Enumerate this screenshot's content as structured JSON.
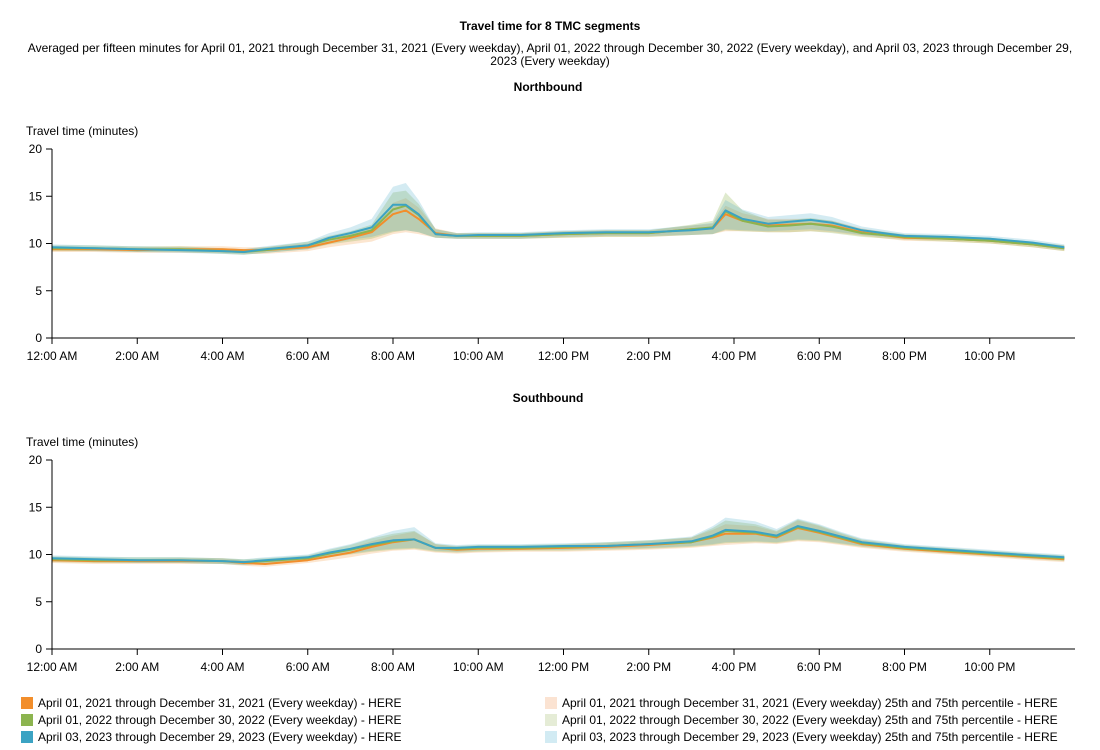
{
  "title": "Travel time for 8 TMC segments",
  "subtitle": "Averaged per fifteen minutes for April 01, 2021 through December 31, 2021 (Every weekday), April 01, 2022 through December 30, 2022 (Every weekday), and April 03, 2023 through December 29, 2023 (Every weekday)",
  "legend": {
    "items": [
      {
        "label": "April 01, 2021 through December 31, 2021 (Every weekday) - HERE",
        "color": "#f28e2b"
      },
      {
        "label": "April 01, 2022 through December 30, 2022 (Every weekday) - HERE",
        "color": "#8cb44f"
      },
      {
        "label": "April 03, 2023 through December 29, 2023 (Every weekday) - HERE",
        "color": "#3ba3c3"
      },
      {
        "label": "April 01, 2021 through December 31, 2021 (Every weekday) 25th and 75th percentile - HERE",
        "color": "#fbe3d2"
      },
      {
        "label": "April 01, 2022 through December 30, 2022 (Every weekday) 25th and 75th percentile - HERE",
        "color": "#e5ecd6"
      },
      {
        "label": "April 03, 2023 through December 29, 2023 (Every weekday) 25th and 75th percentile - HERE",
        "color": "#d2ebf3"
      }
    ]
  },
  "chart_data": [
    {
      "type": "line",
      "title": "Northbound",
      "ylabel": "Travel time (minutes)",
      "ylim": [
        0,
        20
      ],
      "yticks": [
        0,
        5,
        10,
        15,
        20
      ],
      "xlim": [
        0,
        24
      ],
      "xticks": [
        0,
        2,
        4,
        6,
        8,
        10,
        12,
        14,
        16,
        18,
        20,
        22
      ],
      "xtick_labels": [
        "12:00 AM",
        "2:00 AM",
        "4:00 AM",
        "6:00 AM",
        "8:00 AM",
        "10:00 AM",
        "12:00 PM",
        "2:00 PM",
        "4:00 PM",
        "6:00 PM",
        "8:00 PM",
        "10:00 PM"
      ],
      "x": [
        0,
        1,
        2,
        3,
        4,
        4.5,
        5,
        6,
        6.5,
        7,
        7.5,
        8,
        8.3,
        8.6,
        9,
        9.5,
        10,
        11,
        12,
        13,
        14,
        15,
        15.5,
        15.8,
        16.2,
        16.8,
        17.3,
        17.8,
        18.3,
        19,
        20,
        21,
        22,
        23,
        23.75
      ],
      "series": [
        {
          "name": "April 01, 2021 through December 31, 2021 (Every weekday) - HERE",
          "color": "#f28e2b",
          "values": [
            9.4,
            9.4,
            9.3,
            9.4,
            9.4,
            9.3,
            9.3,
            9.6,
            10.1,
            10.6,
            11.2,
            13.1,
            13.5,
            12.6,
            11.1,
            10.8,
            10.8,
            10.8,
            11.0,
            11.1,
            11.1,
            11.5,
            11.6,
            13.1,
            12.4,
            11.9,
            12.0,
            12.1,
            11.9,
            11.2,
            10.6,
            10.5,
            10.3,
            9.9,
            9.5
          ],
          "p25": [
            9.1,
            9.1,
            9.0,
            9.0,
            9.0,
            8.9,
            8.9,
            9.2,
            9.6,
            9.9,
            10.2,
            11.0,
            11.2,
            11.0,
            10.6,
            10.5,
            10.5,
            10.5,
            10.6,
            10.7,
            10.7,
            10.9,
            11.0,
            11.3,
            11.3,
            11.2,
            11.2,
            11.3,
            11.2,
            10.8,
            10.3,
            10.2,
            10.0,
            9.6,
            9.2
          ],
          "p75": [
            9.6,
            9.6,
            9.6,
            9.7,
            9.7,
            9.6,
            9.6,
            10.0,
            10.5,
            11.1,
            11.8,
            14.3,
            14.8,
            13.8,
            11.6,
            11.1,
            11.1,
            11.1,
            11.3,
            11.4,
            11.4,
            11.9,
            12.1,
            14.0,
            13.2,
            12.6,
            12.6,
            12.6,
            12.4,
            11.6,
            10.9,
            10.8,
            10.6,
            10.1,
            9.8
          ]
        },
        {
          "name": "April 01, 2022 through December 30, 2022 (Every weekday) - HERE",
          "color": "#8cb44f",
          "values": [
            9.5,
            9.5,
            9.4,
            9.4,
            9.2,
            9.1,
            9.3,
            9.8,
            10.4,
            10.8,
            11.4,
            13.6,
            14.0,
            13.0,
            11.0,
            10.8,
            10.8,
            10.8,
            11.0,
            11.1,
            11.1,
            11.5,
            11.7,
            13.4,
            12.4,
            11.8,
            11.9,
            12.1,
            11.8,
            11.1,
            10.7,
            10.5,
            10.3,
            9.9,
            9.5
          ],
          "p25": [
            9.2,
            9.2,
            9.1,
            9.1,
            8.9,
            8.8,
            9.0,
            9.4,
            9.9,
            10.2,
            10.5,
            11.2,
            11.4,
            11.2,
            10.6,
            10.5,
            10.5,
            10.5,
            10.6,
            10.7,
            10.7,
            10.9,
            11.0,
            11.4,
            11.3,
            11.2,
            11.2,
            11.3,
            11.1,
            10.7,
            10.4,
            10.2,
            10.0,
            9.6,
            9.2
          ],
          "p75": [
            9.8,
            9.8,
            9.7,
            9.7,
            9.5,
            9.4,
            9.6,
            10.2,
            10.8,
            11.3,
            12.0,
            15.4,
            15.6,
            14.2,
            11.5,
            11.1,
            11.1,
            11.1,
            11.3,
            11.4,
            11.4,
            12.0,
            12.4,
            15.4,
            13.5,
            12.5,
            12.5,
            12.7,
            12.4,
            11.5,
            11.0,
            10.8,
            10.6,
            10.2,
            9.8
          ]
        },
        {
          "name": "April 03, 2023 through December 29, 2023 (Every weekday) - HERE",
          "color": "#3ba3c3",
          "values": [
            9.6,
            9.5,
            9.4,
            9.3,
            9.2,
            9.1,
            9.4,
            9.8,
            10.6,
            11.1,
            11.7,
            14.1,
            14.1,
            13.1,
            11.0,
            10.8,
            10.9,
            10.9,
            11.1,
            11.2,
            11.2,
            11.4,
            11.6,
            13.5,
            12.6,
            12.1,
            12.3,
            12.5,
            12.2,
            11.4,
            10.8,
            10.7,
            10.5,
            10.1,
            9.6
          ],
          "p25": [
            9.3,
            9.2,
            9.1,
            9.0,
            8.9,
            8.8,
            9.0,
            9.4,
            10.0,
            10.4,
            10.7,
            11.3,
            11.4,
            11.2,
            10.6,
            10.5,
            10.5,
            10.5,
            10.7,
            10.8,
            10.8,
            10.9,
            11.0,
            11.5,
            11.4,
            11.3,
            11.4,
            11.5,
            11.3,
            10.9,
            10.5,
            10.4,
            10.2,
            9.8,
            9.3
          ],
          "p75": [
            9.9,
            9.8,
            9.7,
            9.6,
            9.5,
            9.4,
            9.7,
            10.2,
            11.1,
            11.7,
            12.6,
            16.0,
            16.4,
            14.6,
            11.5,
            11.1,
            11.2,
            11.2,
            11.4,
            11.5,
            11.5,
            11.9,
            12.2,
            14.6,
            13.6,
            12.8,
            13.0,
            13.2,
            12.8,
            11.8,
            11.1,
            11.0,
            10.8,
            10.4,
            9.9
          ]
        }
      ]
    },
    {
      "type": "line",
      "title": "Southbound",
      "ylabel": "Travel time (minutes)",
      "ylim": [
        0,
        20
      ],
      "yticks": [
        0,
        5,
        10,
        15,
        20
      ],
      "xlim": [
        0,
        24
      ],
      "xticks": [
        0,
        2,
        4,
        6,
        8,
        10,
        12,
        14,
        16,
        18,
        20,
        22
      ],
      "xtick_labels": [
        "12:00 AM",
        "2:00 AM",
        "4:00 AM",
        "6:00 AM",
        "8:00 AM",
        "10:00 AM",
        "12:00 PM",
        "2:00 PM",
        "4:00 PM",
        "6:00 PM",
        "8:00 PM",
        "10:00 PM"
      ],
      "x": [
        0,
        1,
        2,
        3,
        4,
        4.5,
        5,
        6,
        6.5,
        7,
        7.5,
        8,
        8.5,
        9,
        9.5,
        10,
        11,
        12,
        13,
        14,
        15,
        15.5,
        15.8,
        16.5,
        17,
        17.5,
        18,
        18.5,
        19,
        20,
        21,
        22,
        23,
        23.75
      ],
      "series": [
        {
          "name": "April 01, 2021 through December 31, 2021 (Every weekday) - HERE",
          "color": "#f28e2b",
          "values": [
            9.4,
            9.3,
            9.3,
            9.3,
            9.3,
            9.1,
            9.0,
            9.4,
            9.8,
            10.2,
            10.8,
            11.3,
            11.6,
            10.7,
            10.5,
            10.6,
            10.6,
            10.7,
            10.8,
            11.0,
            11.3,
            11.8,
            12.2,
            12.2,
            11.8,
            12.8,
            12.3,
            11.7,
            11.1,
            10.6,
            10.3,
            10.0,
            9.7,
            9.5
          ],
          "p25": [
            9.1,
            9.0,
            9.0,
            9.0,
            9.0,
            8.8,
            8.7,
            9.1,
            9.4,
            9.7,
            10.1,
            10.4,
            10.5,
            10.2,
            10.1,
            10.2,
            10.3,
            10.3,
            10.4,
            10.5,
            10.7,
            10.9,
            11.0,
            11.2,
            11.1,
            11.4,
            11.3,
            11.0,
            10.7,
            10.3,
            10.0,
            9.7,
            9.4,
            9.2
          ],
          "p75": [
            9.6,
            9.6,
            9.5,
            9.6,
            9.6,
            9.4,
            9.3,
            9.7,
            10.2,
            10.7,
            11.4,
            12.0,
            12.4,
            11.1,
            10.8,
            10.9,
            10.9,
            11.0,
            11.2,
            11.4,
            11.8,
            12.6,
            13.2,
            13.0,
            12.4,
            13.6,
            13.0,
            12.2,
            11.5,
            10.9,
            10.6,
            10.3,
            10.0,
            9.8
          ]
        },
        {
          "name": "April 01, 2022 through December 30, 2022 (Every weekday) - HERE",
          "color": "#8cb44f",
          "values": [
            9.5,
            9.4,
            9.4,
            9.4,
            9.3,
            9.2,
            9.3,
            9.6,
            10.1,
            10.5,
            11.0,
            11.4,
            11.6,
            10.7,
            10.6,
            10.7,
            10.7,
            10.8,
            10.9,
            11.1,
            11.3,
            11.9,
            12.5,
            12.3,
            11.9,
            12.9,
            12.4,
            11.8,
            11.2,
            10.7,
            10.4,
            10.1,
            9.8,
            9.6
          ],
          "p25": [
            9.2,
            9.1,
            9.1,
            9.1,
            9.0,
            8.9,
            9.0,
            9.3,
            9.7,
            10.0,
            10.3,
            10.5,
            10.6,
            10.3,
            10.2,
            10.3,
            10.4,
            10.4,
            10.5,
            10.6,
            10.8,
            11.0,
            11.2,
            11.3,
            11.2,
            11.5,
            11.4,
            11.1,
            10.8,
            10.4,
            10.1,
            9.8,
            9.5,
            9.3
          ],
          "p75": [
            9.8,
            9.7,
            9.7,
            9.7,
            9.6,
            9.5,
            9.6,
            9.9,
            10.5,
            11.0,
            11.7,
            12.2,
            12.5,
            11.1,
            10.9,
            11.0,
            11.0,
            11.1,
            11.3,
            11.5,
            11.8,
            12.8,
            13.6,
            13.2,
            12.5,
            13.7,
            13.1,
            12.3,
            11.6,
            11.0,
            10.7,
            10.4,
            10.1,
            9.9
          ]
        },
        {
          "name": "April 03, 2023 through December 29, 2023 (Every weekday) - HERE",
          "color": "#3ba3c3",
          "values": [
            9.6,
            9.5,
            9.4,
            9.4,
            9.3,
            9.2,
            9.4,
            9.7,
            10.2,
            10.6,
            11.1,
            11.5,
            11.6,
            10.7,
            10.7,
            10.8,
            10.8,
            10.9,
            10.9,
            11.1,
            11.4,
            12.0,
            12.6,
            12.4,
            12.0,
            13.0,
            12.5,
            11.9,
            11.3,
            10.8,
            10.5,
            10.2,
            9.9,
            9.7
          ],
          "p25": [
            9.3,
            9.2,
            9.1,
            9.1,
            9.0,
            8.9,
            9.1,
            9.4,
            9.8,
            10.1,
            10.4,
            10.6,
            10.7,
            10.4,
            10.3,
            10.4,
            10.5,
            10.5,
            10.6,
            10.7,
            10.9,
            11.1,
            11.3,
            11.4,
            11.3,
            11.6,
            11.5,
            11.2,
            10.9,
            10.5,
            10.2,
            9.9,
            9.6,
            9.4
          ],
          "p75": [
            9.9,
            9.8,
            9.7,
            9.7,
            9.6,
            9.5,
            9.7,
            10.0,
            10.6,
            11.1,
            11.8,
            12.5,
            12.9,
            11.2,
            11.0,
            11.1,
            11.1,
            11.2,
            11.3,
            11.5,
            11.9,
            13.0,
            13.9,
            13.5,
            12.7,
            13.8,
            13.2,
            12.4,
            11.7,
            11.1,
            10.8,
            10.5,
            10.2,
            10.0
          ]
        }
      ]
    }
  ]
}
